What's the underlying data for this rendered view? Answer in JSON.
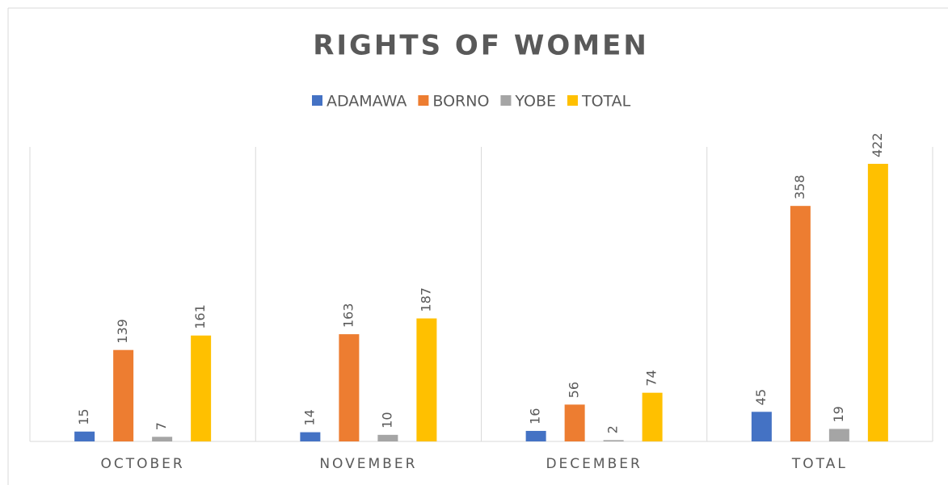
{
  "chart_data": {
    "type": "bar",
    "title": "RIGHTS OF WOMEN",
    "categories": [
      "OCTOBER",
      "NOVEMBER",
      "DECEMBER",
      "TOTAL"
    ],
    "series": [
      {
        "name": "ADAMAWA",
        "color": "#4472c4",
        "values": [
          15,
          14,
          16,
          45
        ]
      },
      {
        "name": "BORNO",
        "color": "#ed7d31",
        "values": [
          139,
          163,
          56,
          358
        ]
      },
      {
        "name": "YOBE",
        "color": "#a5a5a5",
        "values": [
          7,
          10,
          2,
          19
        ]
      },
      {
        "name": "TOTAL",
        "color": "#ffc000",
        "values": [
          161,
          187,
          74,
          422
        ]
      }
    ],
    "legend": "top"
  }
}
